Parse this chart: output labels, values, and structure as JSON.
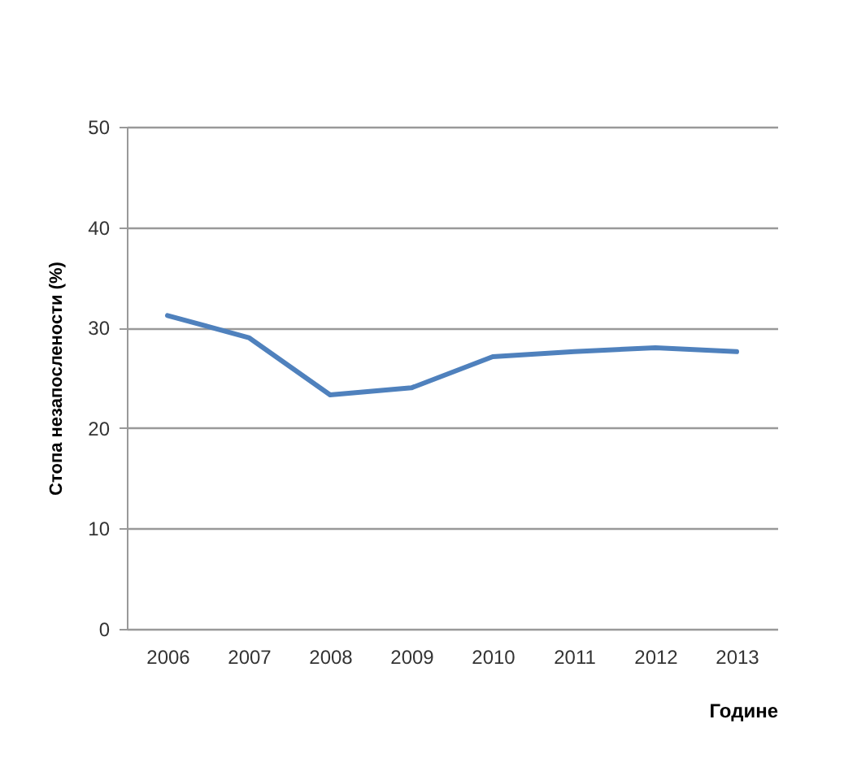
{
  "chart_data": {
    "type": "line",
    "xlabel": "Године",
    "ylabel": "Стопа незапослености  (%)",
    "categories": [
      "2006",
      "2007",
      "2008",
      "2009",
      "2010",
      "2011",
      "2012",
      "2013"
    ],
    "series": [
      {
        "color": "#4f81bd",
        "values": [
          31.2,
          29,
          23.3,
          24,
          27.1,
          27.6,
          28,
          27.6
        ]
      }
    ],
    "ylim": [
      0,
      50
    ],
    "yticks": [
      0,
      10,
      20,
      30,
      40,
      50
    ],
    "grid": "y",
    "marker": "none",
    "line_style": "solid"
  }
}
